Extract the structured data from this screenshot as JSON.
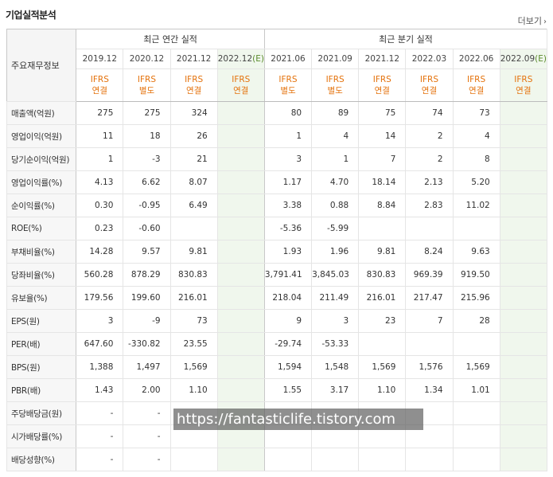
{
  "title": "기업실적분석",
  "more_label": "더보기",
  "header": {
    "row_head": "주요재무정보",
    "annual_label": "최근 연간 실적",
    "quarter_label": "최근 분기 실적",
    "annual_periods": [
      "2019.12",
      "2020.12",
      "2021.12",
      "2022.12(E)"
    ],
    "quarter_periods": [
      "2021.06",
      "2021.09",
      "2021.12",
      "2022.03",
      "2022.06",
      "2022.09(E)"
    ],
    "annual_basis": [
      [
        "IFRS",
        "연결"
      ],
      [
        "IFRS",
        "별도"
      ],
      [
        "IFRS",
        "연결"
      ],
      [
        "IFRS",
        "연결"
      ]
    ],
    "quarter_basis": [
      [
        "IFRS",
        "별도"
      ],
      [
        "IFRS",
        "별도"
      ],
      [
        "IFRS",
        "연결"
      ],
      [
        "IFRS",
        "연결"
      ],
      [
        "IFRS",
        "연결"
      ],
      [
        "IFRS",
        "연결"
      ]
    ]
  },
  "rows": [
    {
      "label": "매출액(억원)",
      "annual": [
        "275",
        "275",
        "324",
        ""
      ],
      "quarter": [
        "80",
        "89",
        "75",
        "74",
        "73",
        ""
      ]
    },
    {
      "label": "영업이익(억원)",
      "annual": [
        "11",
        "18",
        "26",
        ""
      ],
      "quarter": [
        "1",
        "4",
        "14",
        "2",
        "4",
        ""
      ]
    },
    {
      "label": "당기순이익(억원)",
      "annual": [
        "1",
        "-3",
        "21",
        ""
      ],
      "quarter": [
        "3",
        "1",
        "7",
        "2",
        "8",
        ""
      ]
    },
    {
      "label": "영업이익률(%)",
      "annual": [
        "4.13",
        "6.62",
        "8.07",
        ""
      ],
      "quarter": [
        "1.17",
        "4.70",
        "18.14",
        "2.13",
        "5.20",
        ""
      ]
    },
    {
      "label": "순이익률(%)",
      "annual": [
        "0.30",
        "-0.95",
        "6.49",
        ""
      ],
      "quarter": [
        "3.38",
        "0.88",
        "8.84",
        "2.83",
        "11.02",
        ""
      ]
    },
    {
      "label": "ROE(%)",
      "annual": [
        "0.23",
        "-0.60",
        "",
        ""
      ],
      "quarter": [
        "-5.36",
        "-5.99",
        "",
        "",
        "",
        ""
      ]
    },
    {
      "label": "부채비율(%)",
      "annual": [
        "14.28",
        "9.57",
        "9.81",
        ""
      ],
      "quarter": [
        "1.93",
        "1.96",
        "9.81",
        "8.24",
        "9.63",
        ""
      ]
    },
    {
      "label": "당좌비율(%)",
      "annual": [
        "560.28",
        "878.29",
        "830.83",
        ""
      ],
      "quarter": [
        "3,791.41",
        "3,845.03",
        "830.83",
        "969.39",
        "919.50",
        ""
      ]
    },
    {
      "label": "유보율(%)",
      "annual": [
        "179.56",
        "199.60",
        "216.01",
        ""
      ],
      "quarter": [
        "218.04",
        "211.49",
        "216.01",
        "217.47",
        "215.96",
        ""
      ]
    },
    {
      "label": "EPS(원)",
      "annual": [
        "3",
        "-9",
        "73",
        ""
      ],
      "quarter": [
        "9",
        "3",
        "23",
        "7",
        "28",
        ""
      ]
    },
    {
      "label": "PER(배)",
      "annual": [
        "647.60",
        "-330.82",
        "23.55",
        ""
      ],
      "quarter": [
        "-29.74",
        "-53.33",
        "",
        "",
        "",
        ""
      ]
    },
    {
      "label": "BPS(원)",
      "annual": [
        "1,388",
        "1,497",
        "1,569",
        ""
      ],
      "quarter": [
        "1,594",
        "1,548",
        "1,569",
        "1,576",
        "1,569",
        ""
      ]
    },
    {
      "label": "PBR(배)",
      "annual": [
        "1.43",
        "2.00",
        "1.10",
        ""
      ],
      "quarter": [
        "1.55",
        "3.17",
        "1.10",
        "1.34",
        "1.01",
        ""
      ]
    },
    {
      "label": "주당배당금(원)",
      "annual": [
        "-",
        "-",
        "",
        ""
      ],
      "quarter": [
        "",
        "",
        "",
        "",
        "",
        ""
      ]
    },
    {
      "label": "시가배당률(%)",
      "annual": [
        "-",
        "-",
        "",
        ""
      ],
      "quarter": [
        "",
        "",
        "",
        "",
        "",
        ""
      ]
    },
    {
      "label": "배당성향(%)",
      "annual": [
        "-",
        "-",
        "",
        ""
      ],
      "quarter": [
        "",
        "",
        "",
        "",
        "",
        ""
      ]
    }
  ],
  "group_starts": [
    3,
    6,
    9,
    13
  ],
  "colors": {
    "negative": "#e02020",
    "basis": "#e4720c",
    "estimate_bg": "#f0f7ed",
    "estimate_tag": "#5a8b2c"
  },
  "watermark": "https://fantasticlife.tistory.com"
}
